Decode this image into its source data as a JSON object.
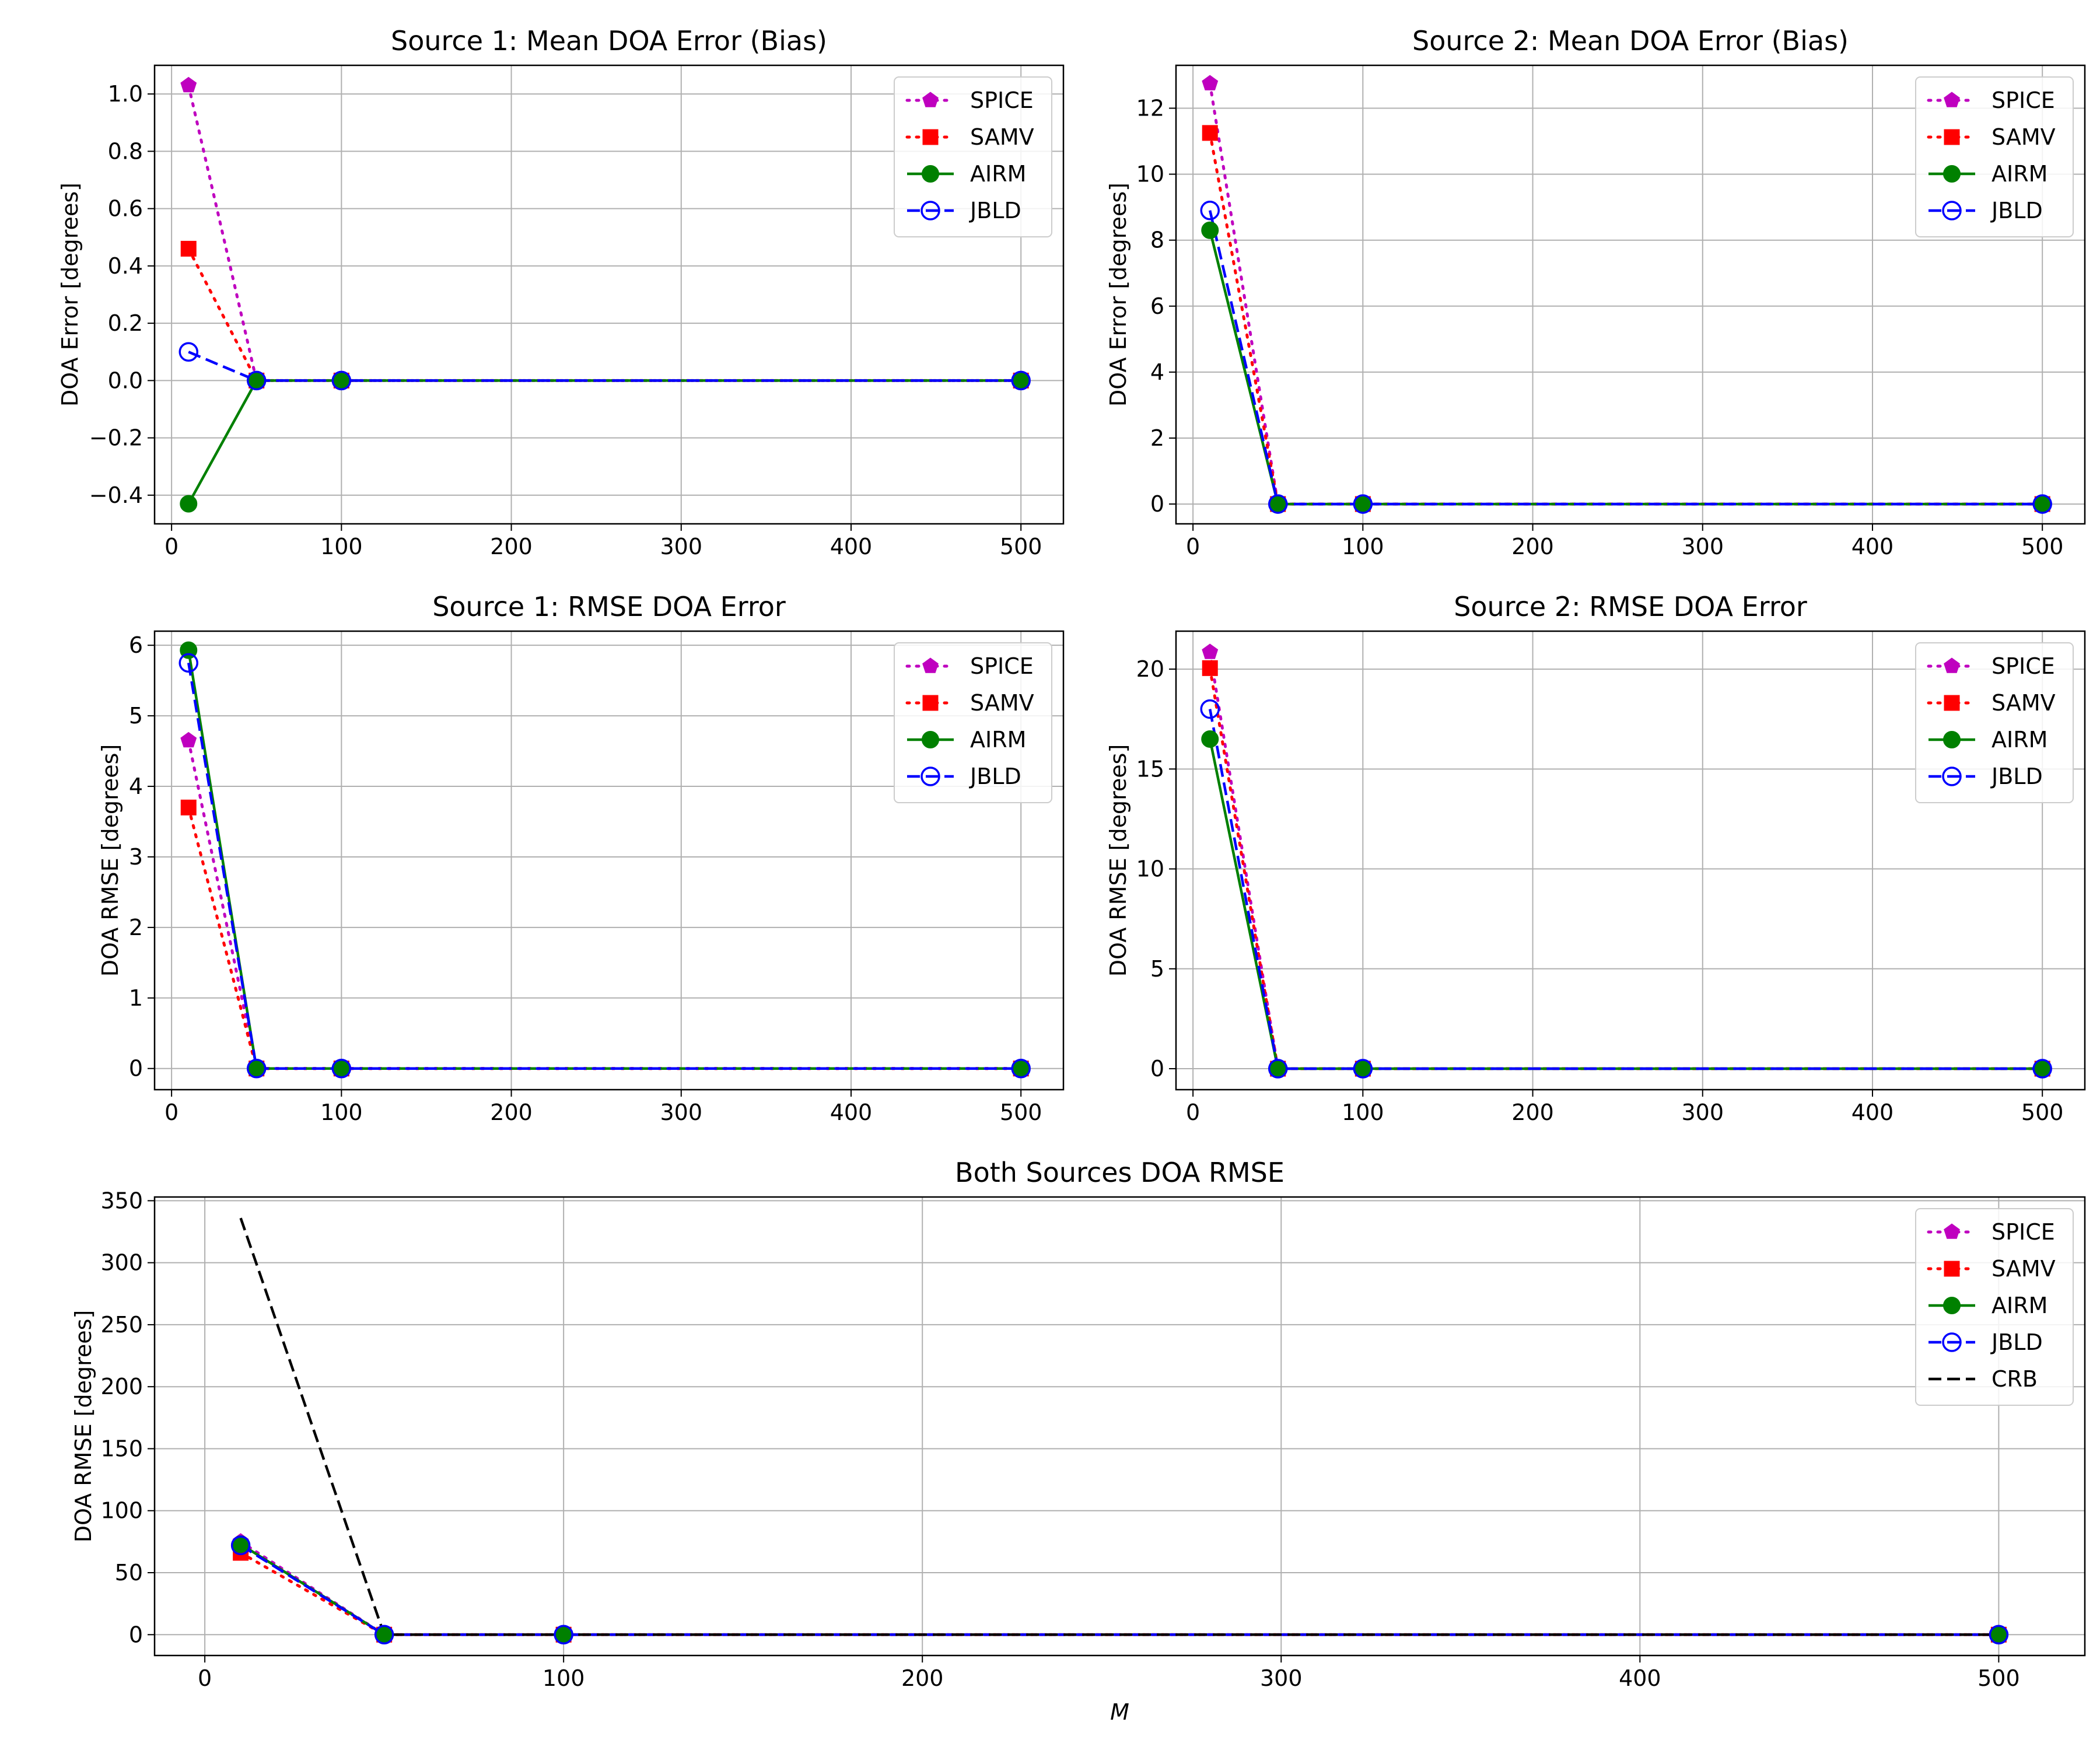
{
  "chart_data": [
    {
      "type": "line",
      "title": "Source 1: Mean DOA Error (Bias)",
      "xlabel": "",
      "ylabel": "DOA Error [degrees]",
      "xlim": [
        -10,
        525
      ],
      "ylim": [
        -0.5,
        1.1
      ],
      "xticks": [
        0,
        100,
        200,
        300,
        400,
        500
      ],
      "xtick_labels": [
        "0",
        "100",
        "200",
        "300",
        "400",
        "500"
      ],
      "yticks": [
        -0.4,
        -0.2,
        0.0,
        0.2,
        0.4,
        0.6,
        0.8,
        1.0
      ],
      "ytick_labels": [
        "−0.4",
        "−0.2",
        "0.0",
        "0.2",
        "0.4",
        "0.6",
        "0.8",
        "1.0"
      ],
      "grid": true,
      "legend_position": "top-right",
      "x": [
        10,
        50,
        100,
        500
      ],
      "series": [
        {
          "name": "SPICE",
          "values": [
            1.03,
            0,
            0,
            0
          ],
          "color": "#bf00bf",
          "linestyle": "dotted",
          "marker": "pentagon"
        },
        {
          "name": "SAMV",
          "values": [
            0.46,
            0,
            0,
            0
          ],
          "color": "#ff0000",
          "linestyle": "dotted",
          "marker": "square"
        },
        {
          "name": "AIRM",
          "values": [
            -0.43,
            0,
            0,
            0
          ],
          "color": "#008000",
          "linestyle": "solid",
          "marker": "circle"
        },
        {
          "name": "JBLD",
          "values": [
            0.1,
            0,
            0,
            0
          ],
          "color": "#0000ff",
          "linestyle": "dashed",
          "marker": "open-circle"
        }
      ]
    },
    {
      "type": "line",
      "title": "Source 2: Mean DOA Error (Bias)",
      "xlabel": "",
      "ylabel": "DOA Error [degrees]",
      "xlim": [
        -10,
        525
      ],
      "ylim": [
        -0.6,
        13.3
      ],
      "xticks": [
        0,
        100,
        200,
        300,
        400,
        500
      ],
      "xtick_labels": [
        "0",
        "100",
        "200",
        "300",
        "400",
        "500"
      ],
      "yticks": [
        0,
        2,
        4,
        6,
        8,
        10,
        12
      ],
      "ytick_labels": [
        "0",
        "2",
        "4",
        "6",
        "8",
        "10",
        "12"
      ],
      "grid": true,
      "legend_position": "top-right",
      "x": [
        10,
        50,
        100,
        500
      ],
      "series": [
        {
          "name": "SPICE",
          "values": [
            12.75,
            0,
            0,
            0
          ],
          "color": "#bf00bf",
          "linestyle": "dotted",
          "marker": "pentagon"
        },
        {
          "name": "SAMV",
          "values": [
            11.25,
            0,
            0,
            0
          ],
          "color": "#ff0000",
          "linestyle": "dotted",
          "marker": "square"
        },
        {
          "name": "AIRM",
          "values": [
            8.3,
            0,
            0,
            0
          ],
          "color": "#008000",
          "linestyle": "solid",
          "marker": "circle"
        },
        {
          "name": "JBLD",
          "values": [
            8.9,
            0,
            0,
            0
          ],
          "color": "#0000ff",
          "linestyle": "dashed",
          "marker": "open-circle"
        }
      ]
    },
    {
      "type": "line",
      "title": "Source 1: RMSE DOA Error",
      "xlabel": "",
      "ylabel": "DOA RMSE [degrees]",
      "xlim": [
        -10,
        525
      ],
      "ylim": [
        -0.3,
        6.2
      ],
      "xticks": [
        0,
        100,
        200,
        300,
        400,
        500
      ],
      "xtick_labels": [
        "0",
        "100",
        "200",
        "300",
        "400",
        "500"
      ],
      "yticks": [
        0,
        1,
        2,
        3,
        4,
        5,
        6
      ],
      "ytick_labels": [
        "0",
        "1",
        "2",
        "3",
        "4",
        "5",
        "6"
      ],
      "grid": true,
      "legend_position": "top-right",
      "x": [
        10,
        50,
        100,
        500
      ],
      "series": [
        {
          "name": "SPICE",
          "values": [
            4.65,
            0,
            0,
            0
          ],
          "color": "#bf00bf",
          "linestyle": "dotted",
          "marker": "pentagon"
        },
        {
          "name": "SAMV",
          "values": [
            3.7,
            0,
            0,
            0
          ],
          "color": "#ff0000",
          "linestyle": "dotted",
          "marker": "square"
        },
        {
          "name": "AIRM",
          "values": [
            5.93,
            0,
            0,
            0
          ],
          "color": "#008000",
          "linestyle": "solid",
          "marker": "circle"
        },
        {
          "name": "JBLD",
          "values": [
            5.75,
            0,
            0,
            0
          ],
          "color": "#0000ff",
          "linestyle": "dashed",
          "marker": "open-circle"
        }
      ]
    },
    {
      "type": "line",
      "title": "Source 2: RMSE DOA Error",
      "xlabel": "",
      "ylabel": "DOA RMSE [degrees]",
      "xlim": [
        -10,
        525
      ],
      "ylim": [
        -1.05,
        21.9
      ],
      "xticks": [
        0,
        100,
        200,
        300,
        400,
        500
      ],
      "xtick_labels": [
        "0",
        "100",
        "200",
        "300",
        "400",
        "500"
      ],
      "yticks": [
        0,
        5,
        10,
        15,
        20
      ],
      "ytick_labels": [
        "0",
        "5",
        "10",
        "15",
        "20"
      ],
      "grid": true,
      "legend_position": "top-right",
      "x": [
        10,
        50,
        100,
        500
      ],
      "series": [
        {
          "name": "SPICE",
          "values": [
            20.85,
            0,
            0,
            0
          ],
          "color": "#bf00bf",
          "linestyle": "dotted",
          "marker": "pentagon"
        },
        {
          "name": "SAMV",
          "values": [
            20.05,
            0,
            0,
            0
          ],
          "color": "#ff0000",
          "linestyle": "dotted",
          "marker": "square"
        },
        {
          "name": "AIRM",
          "values": [
            16.5,
            0,
            0,
            0
          ],
          "color": "#008000",
          "linestyle": "solid",
          "marker": "circle"
        },
        {
          "name": "JBLD",
          "values": [
            18.0,
            0,
            0,
            0
          ],
          "color": "#0000ff",
          "linestyle": "dashed",
          "marker": "open-circle"
        }
      ]
    },
    {
      "type": "line",
      "title": "Both Sources DOA RMSE",
      "xlabel": "M",
      "ylabel": "DOA RMSE [degrees]",
      "xlim": [
        -14,
        524
      ],
      "ylim": [
        -16.8,
        353
      ],
      "xticks": [
        0,
        100,
        200,
        300,
        400,
        500
      ],
      "xtick_labels": [
        "0",
        "100",
        "200",
        "300",
        "400",
        "500"
      ],
      "yticks": [
        0,
        50,
        100,
        150,
        200,
        250,
        300,
        350
      ],
      "ytick_labels": [
        "0",
        "50",
        "100",
        "150",
        "200",
        "250",
        "300",
        "350"
      ],
      "grid": true,
      "legend_position": "top-right",
      "x": [
        10,
        50,
        100,
        500
      ],
      "series": [
        {
          "name": "SPICE",
          "values": [
            75,
            0,
            0,
            0
          ],
          "color": "#bf00bf",
          "linestyle": "dotted",
          "marker": "pentagon"
        },
        {
          "name": "SAMV",
          "values": [
            66,
            0,
            0,
            0
          ],
          "color": "#ff0000",
          "linestyle": "dotted",
          "marker": "square"
        },
        {
          "name": "AIRM",
          "values": [
            73,
            0,
            0,
            0
          ],
          "color": "#008000",
          "linestyle": "solid",
          "marker": "circle"
        },
        {
          "name": "JBLD",
          "values": [
            72,
            0,
            0,
            0
          ],
          "color": "#0000ff",
          "linestyle": "dashed",
          "marker": "open-circle"
        },
        {
          "name": "CRB",
          "values": [
            336,
            0,
            0,
            0
          ],
          "color": "#000000",
          "linestyle": "dashed",
          "marker": "none"
        }
      ]
    }
  ]
}
